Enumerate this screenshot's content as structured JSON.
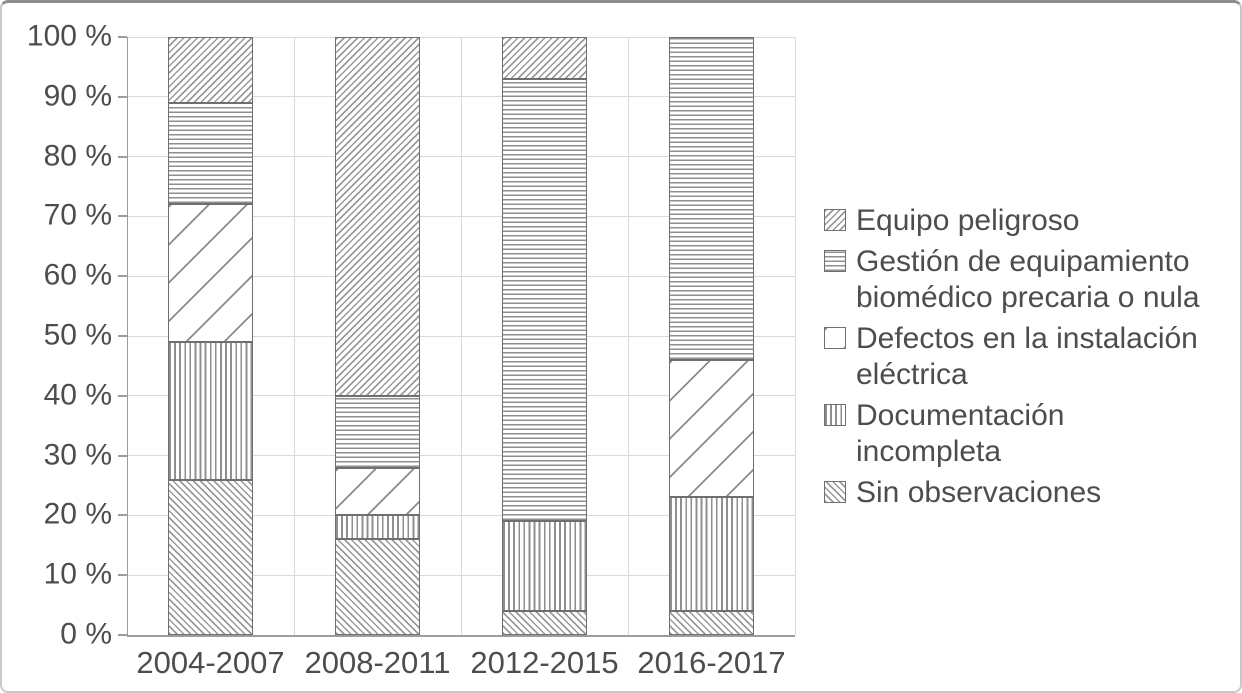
{
  "chart_data": {
    "type": "bar",
    "subtype": "stacked-100-percent",
    "title": "",
    "xlabel": "",
    "ylabel": "",
    "grid": true,
    "legend_position": "right",
    "categories": [
      "2004-2007",
      "2008-2011",
      "2012-2015",
      "2016-2017"
    ],
    "series": [
      {
        "name": "Sin observaciones",
        "pattern": "diag-down-fine",
        "values": [
          26,
          16,
          4,
          4
        ]
      },
      {
        "name": "Documentación incompleta",
        "pattern": "vertical",
        "values": [
          23,
          4,
          15,
          19
        ]
      },
      {
        "name": "Defectos en la instalación eléctrica",
        "pattern": "diag-up-wide",
        "values": [
          23,
          8,
          0,
          23
        ]
      },
      {
        "name": "Gestión de equipamiento biomédico precaria o nula",
        "pattern": "horizontal",
        "values": [
          17,
          12,
          74,
          54
        ]
      },
      {
        "name": "Equipo peligroso",
        "pattern": "diag-up-fine",
        "values": [
          11,
          60,
          7,
          0
        ]
      }
    ],
    "y_axis": {
      "min": 0,
      "max": 100,
      "step": 10,
      "tick_labels": [
        "0 %",
        "10 %",
        "20 %",
        "30 %",
        "40 %",
        "50 %",
        "60 %",
        "70 %",
        "80 %",
        "90 %",
        "100 %"
      ]
    },
    "legend_items": [
      {
        "name": "Equipo peligroso",
        "pattern": "diag-up-fine",
        "lines": [
          "Equipo peligroso"
        ]
      },
      {
        "name": "Gestión de equipamiento biomédico precaria o nula",
        "pattern": "horizontal",
        "lines": [
          "Gestión de equipamiento",
          "biomédico precaria o nula"
        ]
      },
      {
        "name": "Defectos en la instalación eléctrica",
        "pattern": "diag-up-wide",
        "lines": [
          "Defectos en la instalación",
          "eléctrica"
        ]
      },
      {
        "name": "Documentación incompleta",
        "pattern": "vertical",
        "lines": [
          "Documentación",
          "incompleta"
        ]
      },
      {
        "name": "Sin observaciones",
        "pattern": "diag-down-fine",
        "lines": [
          "Sin observaciones"
        ]
      }
    ]
  },
  "colors": {
    "background": "#ffffff",
    "hatch_line": "#8f8f8f",
    "segment_border": "#6f6f6f",
    "gridline": "#d9d9d9",
    "axis": "#9c9c9c",
    "text": "#4d4d4d"
  }
}
